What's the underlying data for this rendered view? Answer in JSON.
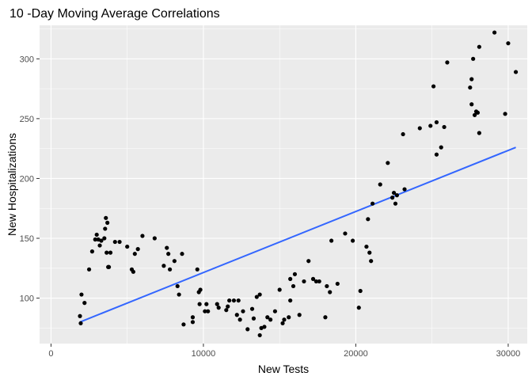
{
  "chart_data": {
    "type": "scatter",
    "title": "10 -Day Moving Average Correlations",
    "xlabel": "New Tests",
    "ylabel": "New Hospitalizations",
    "xlim": [
      -750,
      31250
    ],
    "ylim": [
      62,
      328
    ],
    "x_ticks": [
      0,
      10000,
      20000,
      30000
    ],
    "x_tick_labels": [
      "0",
      "10000",
      "20000",
      "30000"
    ],
    "y_ticks": [
      100,
      150,
      200,
      250,
      300
    ],
    "y_tick_labels": [
      "100",
      "150",
      "200",
      "250",
      "300"
    ],
    "grid": true,
    "legend": "none",
    "colors": {
      "panel": "#ebebeb",
      "grid": "#ffffff",
      "points": "#000000",
      "trend": "#3366ff"
    },
    "trend_line": {
      "x": [
        1900,
        30500
      ],
      "y": [
        80,
        226
      ]
    },
    "points": [
      {
        "x": 1900,
        "y": 85
      },
      {
        "x": 1950,
        "y": 79
      },
      {
        "x": 2000,
        "y": 103
      },
      {
        "x": 2200,
        "y": 96
      },
      {
        "x": 2500,
        "y": 124
      },
      {
        "x": 2700,
        "y": 139
      },
      {
        "x": 2900,
        "y": 149
      },
      {
        "x": 3000,
        "y": 153
      },
      {
        "x": 3100,
        "y": 149
      },
      {
        "x": 3200,
        "y": 144
      },
      {
        "x": 3300,
        "y": 148
      },
      {
        "x": 3500,
        "y": 150
      },
      {
        "x": 3550,
        "y": 158
      },
      {
        "x": 3600,
        "y": 167
      },
      {
        "x": 3700,
        "y": 163
      },
      {
        "x": 3650,
        "y": 138
      },
      {
        "x": 3800,
        "y": 126
      },
      {
        "x": 3900,
        "y": 138
      },
      {
        "x": 3750,
        "y": 126
      },
      {
        "x": 4200,
        "y": 147
      },
      {
        "x": 4500,
        "y": 147
      },
      {
        "x": 5000,
        "y": 143
      },
      {
        "x": 5300,
        "y": 124
      },
      {
        "x": 5400,
        "y": 122
      },
      {
        "x": 5500,
        "y": 137
      },
      {
        "x": 5700,
        "y": 141
      },
      {
        "x": 6000,
        "y": 152
      },
      {
        "x": 6800,
        "y": 150
      },
      {
        "x": 7400,
        "y": 127
      },
      {
        "x": 7600,
        "y": 142
      },
      {
        "x": 7700,
        "y": 137
      },
      {
        "x": 7800,
        "y": 124
      },
      {
        "x": 8100,
        "y": 131
      },
      {
        "x": 8300,
        "y": 110
      },
      {
        "x": 8400,
        "y": 103
      },
      {
        "x": 8600,
        "y": 137
      },
      {
        "x": 8700,
        "y": 78
      },
      {
        "x": 9300,
        "y": 84
      },
      {
        "x": 9300,
        "y": 80
      },
      {
        "x": 9600,
        "y": 124
      },
      {
        "x": 9700,
        "y": 105
      },
      {
        "x": 9800,
        "y": 107
      },
      {
        "x": 9750,
        "y": 95
      },
      {
        "x": 10200,
        "y": 95
      },
      {
        "x": 10100,
        "y": 89
      },
      {
        "x": 10300,
        "y": 89
      },
      {
        "x": 10900,
        "y": 95
      },
      {
        "x": 11000,
        "y": 92
      },
      {
        "x": 11500,
        "y": 90
      },
      {
        "x": 11600,
        "y": 93
      },
      {
        "x": 11700,
        "y": 98
      },
      {
        "x": 12000,
        "y": 98
      },
      {
        "x": 12200,
        "y": 86
      },
      {
        "x": 12400,
        "y": 82
      },
      {
        "x": 12300,
        "y": 98
      },
      {
        "x": 12600,
        "y": 89
      },
      {
        "x": 12900,
        "y": 74
      },
      {
        "x": 13200,
        "y": 91
      },
      {
        "x": 13300,
        "y": 83
      },
      {
        "x": 13500,
        "y": 101
      },
      {
        "x": 13700,
        "y": 69
      },
      {
        "x": 13800,
        "y": 75
      },
      {
        "x": 13700,
        "y": 103
      },
      {
        "x": 14000,
        "y": 76
      },
      {
        "x": 14200,
        "y": 84
      },
      {
        "x": 14400,
        "y": 82
      },
      {
        "x": 14700,
        "y": 89
      },
      {
        "x": 15000,
        "y": 107
      },
      {
        "x": 15200,
        "y": 79
      },
      {
        "x": 15300,
        "y": 82
      },
      {
        "x": 15600,
        "y": 84
      },
      {
        "x": 15700,
        "y": 98
      },
      {
        "x": 15700,
        "y": 116
      },
      {
        "x": 15900,
        "y": 110
      },
      {
        "x": 16000,
        "y": 120
      },
      {
        "x": 16300,
        "y": 86
      },
      {
        "x": 16600,
        "y": 114
      },
      {
        "x": 16900,
        "y": 131
      },
      {
        "x": 17200,
        "y": 116
      },
      {
        "x": 17400,
        "y": 114
      },
      {
        "x": 17600,
        "y": 114
      },
      {
        "x": 18000,
        "y": 84
      },
      {
        "x": 18100,
        "y": 110
      },
      {
        "x": 18300,
        "y": 105
      },
      {
        "x": 18400,
        "y": 148
      },
      {
        "x": 18800,
        "y": 112
      },
      {
        "x": 19300,
        "y": 154
      },
      {
        "x": 19800,
        "y": 148
      },
      {
        "x": 20200,
        "y": 92
      },
      {
        "x": 20300,
        "y": 106
      },
      {
        "x": 20700,
        "y": 143
      },
      {
        "x": 20800,
        "y": 166
      },
      {
        "x": 20900,
        "y": 138
      },
      {
        "x": 21000,
        "y": 131
      },
      {
        "x": 21100,
        "y": 179
      },
      {
        "x": 21600,
        "y": 195
      },
      {
        "x": 22100,
        "y": 213
      },
      {
        "x": 22400,
        "y": 184
      },
      {
        "x": 22500,
        "y": 188
      },
      {
        "x": 22600,
        "y": 179
      },
      {
        "x": 22700,
        "y": 186
      },
      {
        "x": 23100,
        "y": 237
      },
      {
        "x": 23200,
        "y": 191
      },
      {
        "x": 24200,
        "y": 242
      },
      {
        "x": 24900,
        "y": 244
      },
      {
        "x": 25100,
        "y": 277
      },
      {
        "x": 25300,
        "y": 220
      },
      {
        "x": 25600,
        "y": 226
      },
      {
        "x": 25300,
        "y": 247
      },
      {
        "x": 25800,
        "y": 243
      },
      {
        "x": 26000,
        "y": 297
      },
      {
        "x": 27500,
        "y": 276
      },
      {
        "x": 27600,
        "y": 283
      },
      {
        "x": 27700,
        "y": 300
      },
      {
        "x": 27800,
        "y": 253
      },
      {
        "x": 27600,
        "y": 262
      },
      {
        "x": 27900,
        "y": 256
      },
      {
        "x": 28100,
        "y": 238
      },
      {
        "x": 28000,
        "y": 255
      },
      {
        "x": 28100,
        "y": 310
      },
      {
        "x": 29100,
        "y": 322
      },
      {
        "x": 29800,
        "y": 254
      },
      {
        "x": 30000,
        "y": 313
      },
      {
        "x": 30500,
        "y": 289
      }
    ]
  }
}
